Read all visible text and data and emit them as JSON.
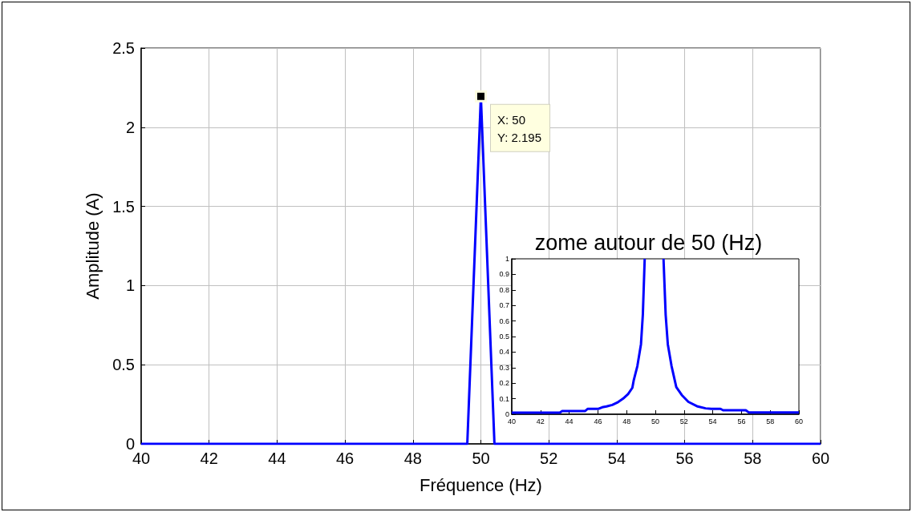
{
  "chart_data": [
    {
      "type": "line",
      "xlabel": "Fréquence (Hz)",
      "ylabel": "Amplitude (A)",
      "x": [
        40,
        49.6,
        50,
        50.4,
        60
      ],
      "values": [
        0,
        0,
        2.195,
        0,
        0
      ],
      "color": "#0000ff",
      "xlim": [
        40,
        60
      ],
      "ylim": [
        0,
        2.5
      ],
      "xticks": [
        40,
        42,
        44,
        46,
        48,
        50,
        52,
        54,
        56,
        58,
        60
      ],
      "yticks": [
        0,
        0.5,
        1,
        1.5,
        2,
        2.5
      ],
      "grid": true,
      "annotations": [
        {
          "text": "X: 50\nY: 2.195",
          "x": 50,
          "y": 2.195
        }
      ]
    },
    {
      "type": "line",
      "title": "zome autour de 50 (Hz)",
      "x": [
        40,
        43.35,
        43.5,
        45.1,
        45.3,
        46.05,
        46.3,
        46.6,
        47.0,
        47.35,
        47.75,
        48.1,
        48.4,
        48.5,
        48.75,
        49.0,
        49.13,
        49.26,
        50,
        50.57,
        50.72,
        50.87,
        51.13,
        51.46,
        51.84,
        52.3,
        52.95,
        53.5,
        53.9,
        54.54,
        54.72,
        56.3,
        56.5,
        60
      ],
      "values": [
        0.01,
        0.01,
        0.02,
        0.02,
        0.035,
        0.035,
        0.045,
        0.05,
        0.06,
        0.075,
        0.1,
        0.13,
        0.17,
        0.22,
        0.31,
        0.45,
        0.64,
        1,
        null,
        1,
        0.64,
        0.45,
        0.31,
        0.175,
        0.124,
        0.08,
        0.05,
        0.038,
        0.035,
        0.035,
        0.026,
        0.026,
        0.012,
        0.012
      ],
      "color": "#0000ff",
      "xlim": [
        40,
        60
      ],
      "ylim": [
        0,
        1
      ],
      "xticks": [
        40,
        42,
        44,
        46,
        48,
        50,
        52,
        54,
        56,
        58,
        60
      ],
      "yticks": [
        0,
        0.1,
        0.2,
        0.3,
        0.4,
        0.5,
        0.6,
        0.7,
        0.8,
        0.9,
        1
      ]
    }
  ]
}
